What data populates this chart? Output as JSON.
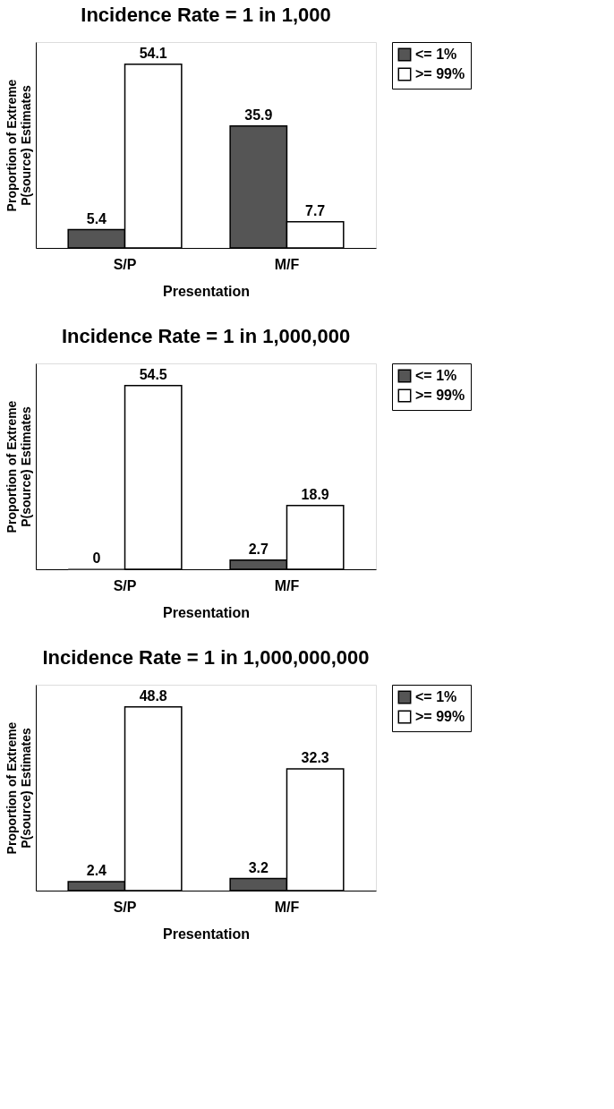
{
  "chart_data": [
    {
      "type": "bar",
      "title": "Incidence Rate = 1 in 1,000",
      "xlabel": "Presentation",
      "ylabel": "Proportion of Extreme\nP(source) Estimates",
      "categories": [
        "S/P",
        "M/F"
      ],
      "series": [
        {
          "name": "<= 1%",
          "color": "#555555",
          "values": [
            5.4,
            35.9
          ]
        },
        {
          "name": ">= 99%",
          "color": "#ffffff",
          "values": [
            54.1,
            7.7
          ]
        }
      ],
      "data_labels": true,
      "legend": "right",
      "grid": false,
      "tick_labels": "x"
    },
    {
      "type": "bar",
      "title": "Incidence Rate = 1 in 1,000,000",
      "xlabel": "Presentation",
      "ylabel": "Proportion of Extreme\nP(source) Estimates",
      "categories": [
        "S/P",
        "M/F"
      ],
      "series": [
        {
          "name": "<= 1%",
          "color": "#555555",
          "values": [
            0,
            2.7
          ]
        },
        {
          "name": ">= 99%",
          "color": "#ffffff",
          "values": [
            54.5,
            18.9
          ]
        }
      ],
      "data_labels": true,
      "legend": "right",
      "grid": false,
      "tick_labels": "x"
    },
    {
      "type": "bar",
      "title": "Incidence Rate = 1 in 1,000,000,000",
      "xlabel": "Presentation",
      "ylabel": "Proportion of Extreme\nP(source) Estimates",
      "categories": [
        "S/P",
        "M/F"
      ],
      "series": [
        {
          "name": "<= 1%",
          "color": "#555555",
          "values": [
            2.4,
            3.2
          ]
        },
        {
          "name": ">= 99%",
          "color": "#ffffff",
          "values": [
            48.8,
            32.3
          ]
        }
      ],
      "data_labels": true,
      "legend": "right",
      "grid": false,
      "tick_labels": "x"
    }
  ]
}
